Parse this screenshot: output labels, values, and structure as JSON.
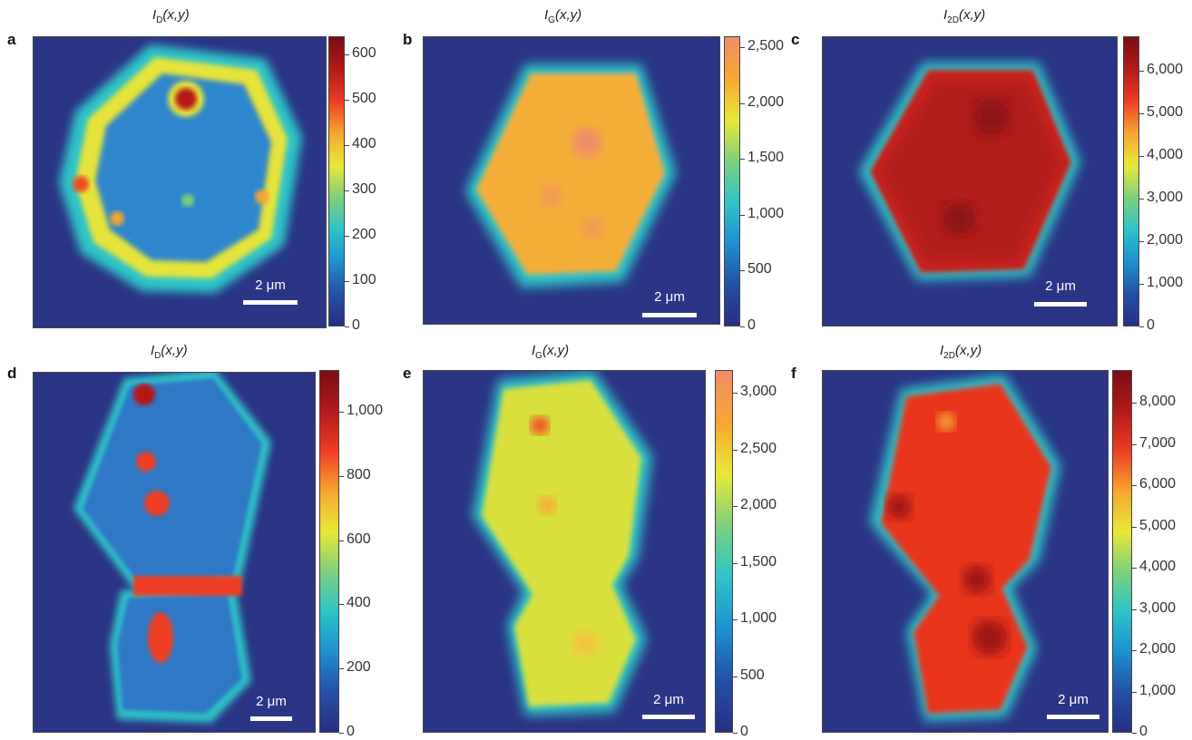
{
  "figure": {
    "colors": {
      "background_map": "#2b3585",
      "jet": [
        "#262f82",
        "#2450a6",
        "#1e90d0",
        "#2ec4c8",
        "#7ed07c",
        "#e8e838",
        "#f6a631",
        "#ee3d24",
        "#b21a1a",
        "#7a0e14"
      ],
      "warm": [
        "#262f82",
        "#2450a6",
        "#1e90d0",
        "#2ec4c8",
        "#7ed07c",
        "#e8e838",
        "#f6a631",
        "#f08c6c"
      ]
    },
    "panels": [
      {
        "letter": "a",
        "title_main": "I",
        "title_sub": "D",
        "title_rest": "(x,y)",
        "scale_label": "2 μm",
        "cbar_ticks": [
          "0",
          "100",
          "200",
          "300",
          "400",
          "500",
          "600"
        ]
      },
      {
        "letter": "b",
        "title_main": "I",
        "title_sub": "G",
        "title_rest": "(x,y)",
        "scale_label": "2 μm",
        "cbar_ticks": [
          "0",
          "500",
          "1,000",
          "1,500",
          "2,000",
          "2,500"
        ]
      },
      {
        "letter": "c",
        "title_main": "I",
        "title_sub": "2D",
        "title_rest": "(x,y)",
        "scale_label": "2 μm",
        "cbar_ticks": [
          "0",
          "1,000",
          "2,000",
          "3,000",
          "4,000",
          "5,000",
          "6,000"
        ]
      },
      {
        "letter": "d",
        "title_main": "I",
        "title_sub": "D",
        "title_rest": "(x,y)",
        "scale_label": "2 μm",
        "cbar_ticks": [
          "0",
          "200",
          "400",
          "600",
          "800",
          "1,000"
        ]
      },
      {
        "letter": "e",
        "title_main": "I",
        "title_sub": "G",
        "title_rest": "(x,y)",
        "scale_label": "2 μm",
        "cbar_ticks": [
          "0",
          "500",
          "1,000",
          "1,500",
          "2,000",
          "2,500",
          "3,000"
        ]
      },
      {
        "letter": "f",
        "title_main": "I",
        "title_sub": "2D",
        "title_rest": "(x,y)",
        "scale_label": "2 μm",
        "cbar_ticks": [
          "0",
          "1,000",
          "2,000",
          "3,000",
          "4,000",
          "5,000",
          "6,000",
          "7,000",
          "8,000"
        ]
      }
    ]
  },
  "chart_data": [
    {
      "type": "heatmap",
      "title": "I_D(x,y)",
      "colorbar_range": [
        0,
        640
      ],
      "colorbar_ticks": [
        0,
        100,
        200,
        300,
        400,
        500,
        600
      ],
      "scale_bar": "2 μm"
    },
    {
      "type": "heatmap",
      "title": "I_G(x,y)",
      "colorbar_range": [
        0,
        2600
      ],
      "colorbar_ticks": [
        0,
        500,
        1000,
        1500,
        2000,
        2500
      ],
      "scale_bar": "2 μm"
    },
    {
      "type": "heatmap",
      "title": "I_2D(x,y)",
      "colorbar_range": [
        0,
        6800
      ],
      "colorbar_ticks": [
        0,
        1000,
        2000,
        3000,
        4000,
        5000,
        6000
      ],
      "scale_bar": "2 μm"
    },
    {
      "type": "heatmap",
      "title": "I_D(x,y)",
      "colorbar_range": [
        0,
        1130
      ],
      "colorbar_ticks": [
        0,
        200,
        400,
        600,
        800,
        1000
      ],
      "scale_bar": "2 μm"
    },
    {
      "type": "heatmap",
      "title": "I_G(x,y)",
      "colorbar_range": [
        0,
        3200
      ],
      "colorbar_ticks": [
        0,
        500,
        1000,
        1500,
        2000,
        2500,
        3000
      ],
      "scale_bar": "2 μm"
    },
    {
      "type": "heatmap",
      "title": "I_2D(x,y)",
      "colorbar_range": [
        0,
        8800
      ],
      "colorbar_ticks": [
        0,
        1000,
        2000,
        3000,
        4000,
        5000,
        6000,
        7000,
        8000
      ],
      "scale_bar": "2 μm"
    }
  ]
}
